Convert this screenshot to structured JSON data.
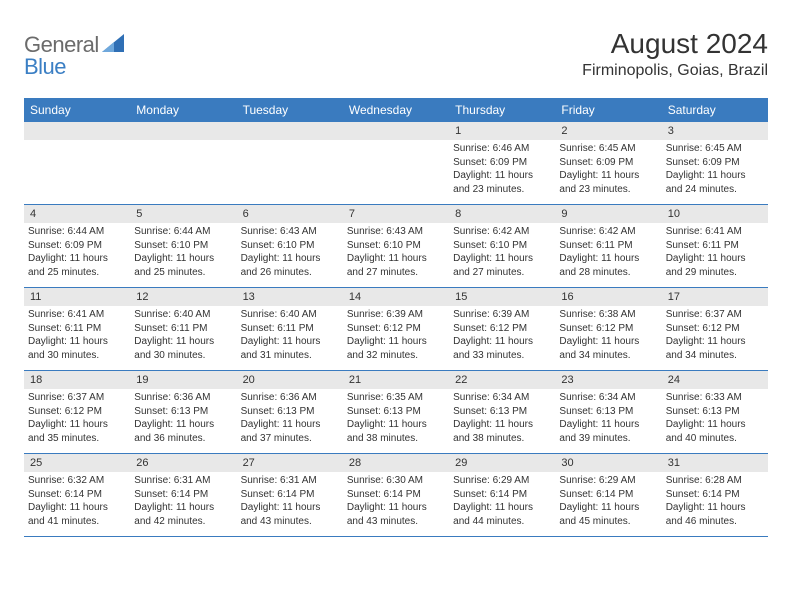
{
  "logo": {
    "text1": "General",
    "text2": "Blue",
    "triangle_color": "#2f6fb5"
  },
  "title": "August 2024",
  "location": "Firminopolis, Goias, Brazil",
  "colors": {
    "header_bg": "#3a7bbf",
    "header_text": "#ffffff",
    "daynum_bg": "#e8e8e8",
    "border": "#3a7bbf"
  },
  "day_names": [
    "Sunday",
    "Monday",
    "Tuesday",
    "Wednesday",
    "Thursday",
    "Friday",
    "Saturday"
  ],
  "weeks": [
    [
      {
        "n": "",
        "sunrise": "",
        "sunset": "",
        "daylight": ""
      },
      {
        "n": "",
        "sunrise": "",
        "sunset": "",
        "daylight": ""
      },
      {
        "n": "",
        "sunrise": "",
        "sunset": "",
        "daylight": ""
      },
      {
        "n": "",
        "sunrise": "",
        "sunset": "",
        "daylight": ""
      },
      {
        "n": "1",
        "sunrise": "Sunrise: 6:46 AM",
        "sunset": "Sunset: 6:09 PM",
        "daylight": "Daylight: 11 hours and 23 minutes."
      },
      {
        "n": "2",
        "sunrise": "Sunrise: 6:45 AM",
        "sunset": "Sunset: 6:09 PM",
        "daylight": "Daylight: 11 hours and 23 minutes."
      },
      {
        "n": "3",
        "sunrise": "Sunrise: 6:45 AM",
        "sunset": "Sunset: 6:09 PM",
        "daylight": "Daylight: 11 hours and 24 minutes."
      }
    ],
    [
      {
        "n": "4",
        "sunrise": "Sunrise: 6:44 AM",
        "sunset": "Sunset: 6:09 PM",
        "daylight": "Daylight: 11 hours and 25 minutes."
      },
      {
        "n": "5",
        "sunrise": "Sunrise: 6:44 AM",
        "sunset": "Sunset: 6:10 PM",
        "daylight": "Daylight: 11 hours and 25 minutes."
      },
      {
        "n": "6",
        "sunrise": "Sunrise: 6:43 AM",
        "sunset": "Sunset: 6:10 PM",
        "daylight": "Daylight: 11 hours and 26 minutes."
      },
      {
        "n": "7",
        "sunrise": "Sunrise: 6:43 AM",
        "sunset": "Sunset: 6:10 PM",
        "daylight": "Daylight: 11 hours and 27 minutes."
      },
      {
        "n": "8",
        "sunrise": "Sunrise: 6:42 AM",
        "sunset": "Sunset: 6:10 PM",
        "daylight": "Daylight: 11 hours and 27 minutes."
      },
      {
        "n": "9",
        "sunrise": "Sunrise: 6:42 AM",
        "sunset": "Sunset: 6:11 PM",
        "daylight": "Daylight: 11 hours and 28 minutes."
      },
      {
        "n": "10",
        "sunrise": "Sunrise: 6:41 AM",
        "sunset": "Sunset: 6:11 PM",
        "daylight": "Daylight: 11 hours and 29 minutes."
      }
    ],
    [
      {
        "n": "11",
        "sunrise": "Sunrise: 6:41 AM",
        "sunset": "Sunset: 6:11 PM",
        "daylight": "Daylight: 11 hours and 30 minutes."
      },
      {
        "n": "12",
        "sunrise": "Sunrise: 6:40 AM",
        "sunset": "Sunset: 6:11 PM",
        "daylight": "Daylight: 11 hours and 30 minutes."
      },
      {
        "n": "13",
        "sunrise": "Sunrise: 6:40 AM",
        "sunset": "Sunset: 6:11 PM",
        "daylight": "Daylight: 11 hours and 31 minutes."
      },
      {
        "n": "14",
        "sunrise": "Sunrise: 6:39 AM",
        "sunset": "Sunset: 6:12 PM",
        "daylight": "Daylight: 11 hours and 32 minutes."
      },
      {
        "n": "15",
        "sunrise": "Sunrise: 6:39 AM",
        "sunset": "Sunset: 6:12 PM",
        "daylight": "Daylight: 11 hours and 33 minutes."
      },
      {
        "n": "16",
        "sunrise": "Sunrise: 6:38 AM",
        "sunset": "Sunset: 6:12 PM",
        "daylight": "Daylight: 11 hours and 34 minutes."
      },
      {
        "n": "17",
        "sunrise": "Sunrise: 6:37 AM",
        "sunset": "Sunset: 6:12 PM",
        "daylight": "Daylight: 11 hours and 34 minutes."
      }
    ],
    [
      {
        "n": "18",
        "sunrise": "Sunrise: 6:37 AM",
        "sunset": "Sunset: 6:12 PM",
        "daylight": "Daylight: 11 hours and 35 minutes."
      },
      {
        "n": "19",
        "sunrise": "Sunrise: 6:36 AM",
        "sunset": "Sunset: 6:13 PM",
        "daylight": "Daylight: 11 hours and 36 minutes."
      },
      {
        "n": "20",
        "sunrise": "Sunrise: 6:36 AM",
        "sunset": "Sunset: 6:13 PM",
        "daylight": "Daylight: 11 hours and 37 minutes."
      },
      {
        "n": "21",
        "sunrise": "Sunrise: 6:35 AM",
        "sunset": "Sunset: 6:13 PM",
        "daylight": "Daylight: 11 hours and 38 minutes."
      },
      {
        "n": "22",
        "sunrise": "Sunrise: 6:34 AM",
        "sunset": "Sunset: 6:13 PM",
        "daylight": "Daylight: 11 hours and 38 minutes."
      },
      {
        "n": "23",
        "sunrise": "Sunrise: 6:34 AM",
        "sunset": "Sunset: 6:13 PM",
        "daylight": "Daylight: 11 hours and 39 minutes."
      },
      {
        "n": "24",
        "sunrise": "Sunrise: 6:33 AM",
        "sunset": "Sunset: 6:13 PM",
        "daylight": "Daylight: 11 hours and 40 minutes."
      }
    ],
    [
      {
        "n": "25",
        "sunrise": "Sunrise: 6:32 AM",
        "sunset": "Sunset: 6:14 PM",
        "daylight": "Daylight: 11 hours and 41 minutes."
      },
      {
        "n": "26",
        "sunrise": "Sunrise: 6:31 AM",
        "sunset": "Sunset: 6:14 PM",
        "daylight": "Daylight: 11 hours and 42 minutes."
      },
      {
        "n": "27",
        "sunrise": "Sunrise: 6:31 AM",
        "sunset": "Sunset: 6:14 PM",
        "daylight": "Daylight: 11 hours and 43 minutes."
      },
      {
        "n": "28",
        "sunrise": "Sunrise: 6:30 AM",
        "sunset": "Sunset: 6:14 PM",
        "daylight": "Daylight: 11 hours and 43 minutes."
      },
      {
        "n": "29",
        "sunrise": "Sunrise: 6:29 AM",
        "sunset": "Sunset: 6:14 PM",
        "daylight": "Daylight: 11 hours and 44 minutes."
      },
      {
        "n": "30",
        "sunrise": "Sunrise: 6:29 AM",
        "sunset": "Sunset: 6:14 PM",
        "daylight": "Daylight: 11 hours and 45 minutes."
      },
      {
        "n": "31",
        "sunrise": "Sunrise: 6:28 AM",
        "sunset": "Sunset: 6:14 PM",
        "daylight": "Daylight: 11 hours and 46 minutes."
      }
    ]
  ]
}
